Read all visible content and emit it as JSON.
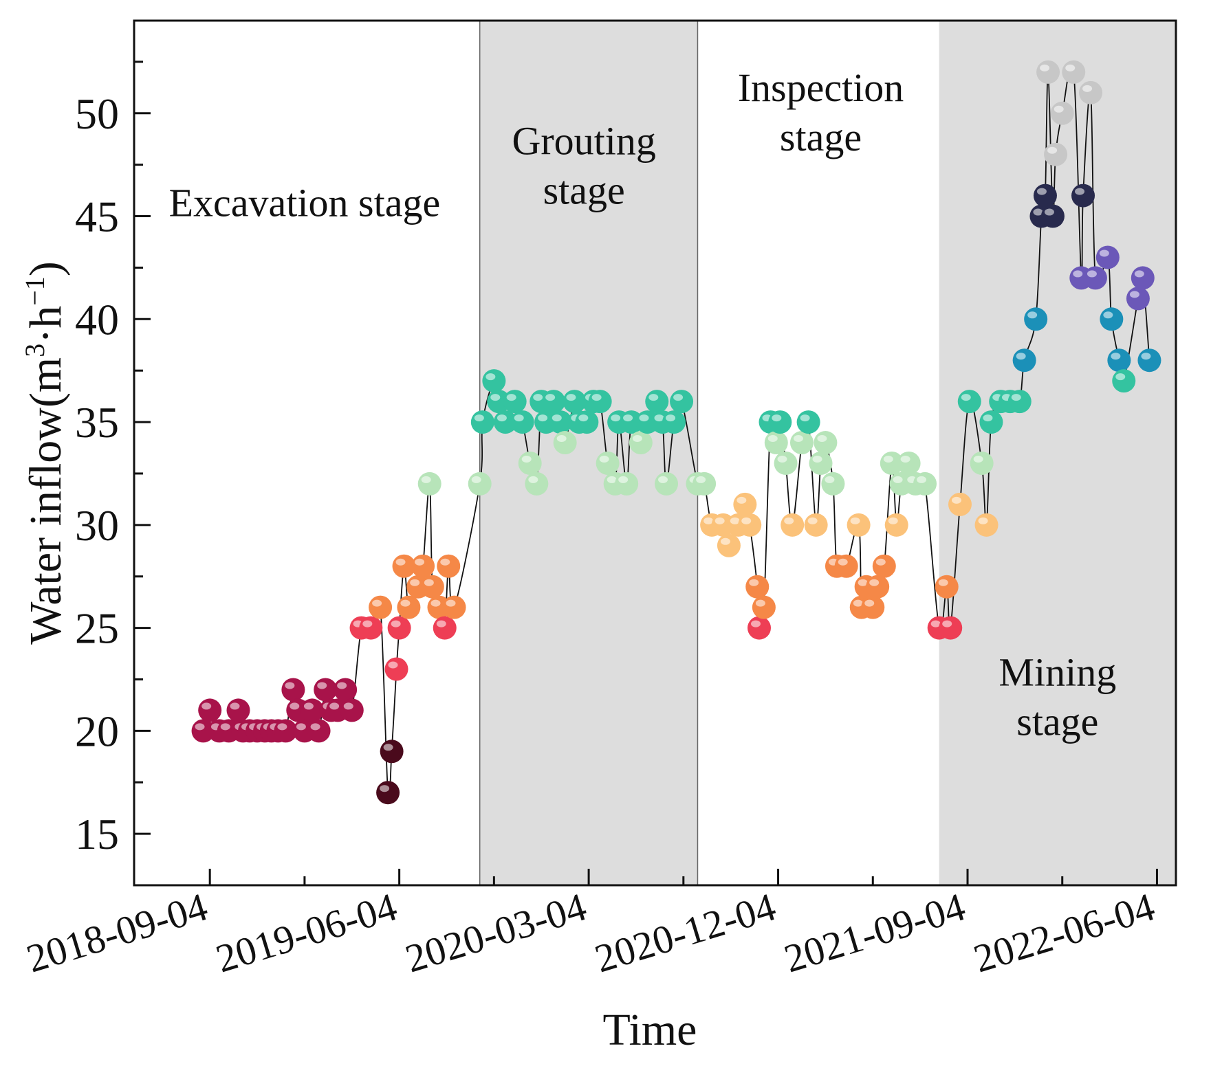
{
  "chart_data": {
    "type": "scatter",
    "xlabel": "Time",
    "ylabel_main": "Water inflow(m",
    "ylabel_sup1": "3",
    "ylabel_mid": "·h",
    "ylabel_sup2": "−1",
    "ylabel_end": ")",
    "ylim": [
      12.5,
      54.5
    ],
    "yticks": [
      15,
      20,
      25,
      30,
      35,
      40,
      45,
      50
    ],
    "xlim": [
      -0.8,
      10.2
    ],
    "xticks": [
      {
        "x": 0,
        "label": "2018-09-04"
      },
      {
        "x": 2,
        "label": "2019-06-04"
      },
      {
        "x": 4,
        "label": "2020-03-04"
      },
      {
        "x": 6,
        "label": "2020-12-04"
      },
      {
        "x": 8,
        "label": "2021-09-04"
      },
      {
        "x": 10,
        "label": "2022-06-04"
      }
    ],
    "stages": [
      {
        "name": "Excavation stage",
        "lines": [
          "Excavation stage"
        ],
        "x_start": -0.8,
        "x_end": 2.85,
        "shaded": false,
        "label_x": 1.0,
        "label_y": 45.0
      },
      {
        "name": "Grouting stage",
        "lines": [
          "Grouting",
          "stage"
        ],
        "x_start": 2.85,
        "x_end": 5.15,
        "shaded": true,
        "label_x": 3.95,
        "label_y": 48.0
      },
      {
        "name": "Inspection stage",
        "lines": [
          "Inspection",
          "stage"
        ],
        "x_start": 5.15,
        "x_end": 7.7,
        "shaded": false,
        "label_x": 6.45,
        "label_y": 50.6
      },
      {
        "name": "Mining stage",
        "lines": [
          "Mining",
          "stage"
        ],
        "x_start": 7.7,
        "x_end": 10.2,
        "shaded": true,
        "label_x": 8.95,
        "label_y": 22.2
      }
    ],
    "colors": {
      "20": "#a8134a",
      "21": "#a8134a",
      "22": "#a8134a",
      "17": "#4a0a1c",
      "19": "#4a0a1c",
      "23": "#ee3e55",
      "25": "#ee3e55",
      "26": "#f58847",
      "27": "#f58847",
      "28": "#f58847",
      "29": "#fbc27a",
      "30": "#fbc27a",
      "31": "#fbc27a",
      "32": "#b7e4b9",
      "33": "#b7e4b9",
      "34": "#b7e4b9",
      "35": "#34c3a0",
      "36": "#34c3a0",
      "37": "#34c3a0",
      "38": "#1b90b8",
      "40": "#1b90b8",
      "41": "#6b58b8",
      "42": "#6b58b8",
      "43": "#6b58b8",
      "45": "#282a4d",
      "46": "#282a4d",
      "48": "#c7c7c7",
      "50": "#c7c7c7",
      "51": "#c7c7c7",
      "52": "#c7c7c7"
    },
    "points": [
      [
        -0.07,
        20
      ],
      [
        0.0,
        21
      ],
      [
        0.1,
        20
      ],
      [
        0.2,
        20
      ],
      [
        0.3,
        21
      ],
      [
        0.35,
        20
      ],
      [
        0.42,
        20
      ],
      [
        0.5,
        20
      ],
      [
        0.58,
        20
      ],
      [
        0.65,
        20
      ],
      [
        0.72,
        20
      ],
      [
        0.8,
        20
      ],
      [
        0.88,
        22
      ],
      [
        0.93,
        21
      ],
      [
        1.0,
        20
      ],
      [
        1.08,
        21
      ],
      [
        1.15,
        20
      ],
      [
        1.22,
        22
      ],
      [
        1.28,
        21
      ],
      [
        1.35,
        21
      ],
      [
        1.43,
        22
      ],
      [
        1.5,
        21
      ],
      [
        1.6,
        25
      ],
      [
        1.7,
        25
      ],
      [
        1.8,
        26
      ],
      [
        1.88,
        17
      ],
      [
        1.92,
        19
      ],
      [
        1.97,
        23
      ],
      [
        2.0,
        25
      ],
      [
        2.05,
        28
      ],
      [
        2.1,
        26
      ],
      [
        2.2,
        27
      ],
      [
        2.25,
        28
      ],
      [
        2.32,
        32
      ],
      [
        2.35,
        27
      ],
      [
        2.42,
        26
      ],
      [
        2.48,
        25
      ],
      [
        2.52,
        28
      ],
      [
        2.58,
        26
      ],
      [
        2.85,
        32
      ],
      [
        2.88,
        35
      ],
      [
        3.0,
        37
      ],
      [
        3.05,
        36
      ],
      [
        3.12,
        35
      ],
      [
        3.22,
        36
      ],
      [
        3.3,
        35
      ],
      [
        3.38,
        33
      ],
      [
        3.45,
        32
      ],
      [
        3.5,
        36
      ],
      [
        3.55,
        35
      ],
      [
        3.63,
        36
      ],
      [
        3.7,
        35
      ],
      [
        3.75,
        34
      ],
      [
        3.85,
        36
      ],
      [
        3.9,
        35
      ],
      [
        3.98,
        35
      ],
      [
        4.05,
        36
      ],
      [
        4.12,
        36
      ],
      [
        4.2,
        33
      ],
      [
        4.28,
        32
      ],
      [
        4.32,
        35
      ],
      [
        4.4,
        32
      ],
      [
        4.45,
        35
      ],
      [
        4.55,
        34
      ],
      [
        4.62,
        35
      ],
      [
        4.72,
        36
      ],
      [
        4.78,
        35
      ],
      [
        4.82,
        32
      ],
      [
        4.9,
        35
      ],
      [
        4.98,
        36
      ],
      [
        5.15,
        32
      ],
      [
        5.22,
        32
      ],
      [
        5.3,
        30
      ],
      [
        5.42,
        30
      ],
      [
        5.48,
        29
      ],
      [
        5.58,
        30
      ],
      [
        5.65,
        31
      ],
      [
        5.7,
        30
      ],
      [
        5.78,
        27
      ],
      [
        5.8,
        25
      ],
      [
        5.85,
        26
      ],
      [
        5.92,
        35
      ],
      [
        5.98,
        34
      ],
      [
        6.02,
        35
      ],
      [
        6.08,
        33
      ],
      [
        6.15,
        30
      ],
      [
        6.25,
        34
      ],
      [
        6.32,
        35
      ],
      [
        6.4,
        30
      ],
      [
        6.45,
        33
      ],
      [
        6.5,
        34
      ],
      [
        6.58,
        32
      ],
      [
        6.62,
        28
      ],
      [
        6.72,
        28
      ],
      [
        6.85,
        30
      ],
      [
        6.88,
        26
      ],
      [
        6.93,
        27
      ],
      [
        7.0,
        26
      ],
      [
        7.05,
        27
      ],
      [
        7.12,
        28
      ],
      [
        7.2,
        33
      ],
      [
        7.25,
        30
      ],
      [
        7.3,
        32
      ],
      [
        7.38,
        33
      ],
      [
        7.45,
        32
      ],
      [
        7.55,
        32
      ],
      [
        7.7,
        25
      ],
      [
        7.78,
        27
      ],
      [
        7.82,
        25
      ],
      [
        7.92,
        31
      ],
      [
        8.02,
        36
      ],
      [
        8.15,
        33
      ],
      [
        8.2,
        30
      ],
      [
        8.25,
        35
      ],
      [
        8.35,
        36
      ],
      [
        8.45,
        36
      ],
      [
        8.55,
        36
      ],
      [
        8.6,
        38
      ],
      [
        8.72,
        40
      ],
      [
        8.78,
        45
      ],
      [
        8.82,
        46
      ],
      [
        8.85,
        52
      ],
      [
        8.9,
        45
      ],
      [
        8.93,
        48
      ],
      [
        9.0,
        50
      ],
      [
        9.12,
        52
      ],
      [
        9.2,
        42
      ],
      [
        9.22,
        46
      ],
      [
        9.3,
        51
      ],
      [
        9.35,
        42
      ],
      [
        9.48,
        43
      ],
      [
        9.52,
        40
      ],
      [
        9.6,
        38
      ],
      [
        9.65,
        37
      ],
      [
        9.8,
        41
      ],
      [
        9.85,
        42
      ],
      [
        9.92,
        38
      ]
    ]
  }
}
